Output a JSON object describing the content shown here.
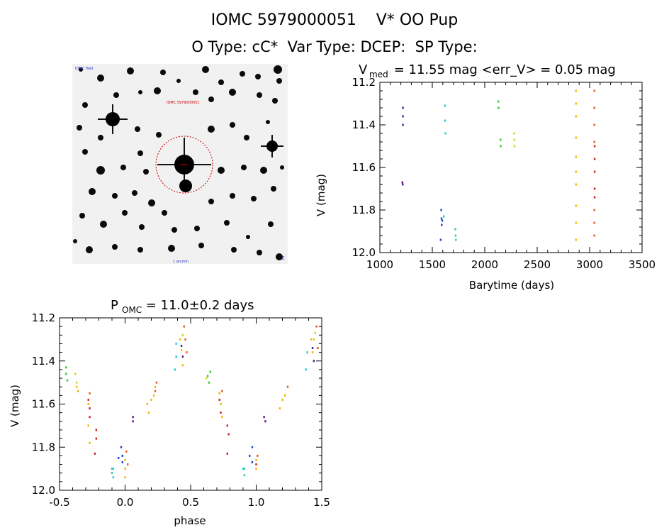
{
  "header": {
    "title_line1": "IOMC 5979000051    V* OO Pup",
    "title_line2": "O Type: cC*  Var Type: DCEP:  SP Type:"
  },
  "image_panel": {
    "description_icon": "star-field-image",
    "label_top_left": "IOMC field",
    "label_center": "IOMC 5979000051",
    "label_bottom_center": "1 arcmin",
    "label_bottom_right": "E",
    "circle_color": "#cc0000"
  },
  "chart_data": [
    {
      "type": "scatter",
      "title_main": "V",
      "title_sub": "med",
      "title_rest": " = 11.55 mag <err_V> = 0.05 mag",
      "xlabel": "Barytime (days)",
      "ylabel": "V (mag)",
      "xlim": [
        1000,
        3500
      ],
      "ylim": [
        11.2,
        12.0
      ],
      "y_inverted": true,
      "xticks": [
        1000,
        1500,
        2000,
        2500,
        3000,
        3500
      ],
      "yticks": [
        "11.2",
        "11.4",
        "11.6",
        "11.8",
        "12.0"
      ],
      "series": [
        {
          "color": "#5a1a8c",
          "points": [
            [
              1220,
              11.32
            ],
            [
              1220,
              11.36
            ],
            [
              1220,
              11.4
            ],
            [
              1215,
              11.67
            ],
            [
              1218,
              11.68
            ]
          ]
        },
        {
          "color": "#2244cc",
          "points": [
            [
              1585,
              11.8
            ],
            [
              1588,
              11.84
            ],
            [
              1590,
              11.87
            ],
            [
              1595,
              11.85
            ],
            [
              1580,
              11.94
            ]
          ]
        },
        {
          "color": "#22cccc",
          "points": [
            [
              1620,
              11.31
            ],
            [
              1622,
              11.38
            ],
            [
              1625,
              11.44
            ],
            [
              1610,
              11.83
            ]
          ]
        },
        {
          "color": "#33ccaa",
          "points": [
            [
              1720,
              11.89
            ],
            [
              1722,
              11.92
            ],
            [
              1725,
              11.94
            ]
          ]
        },
        {
          "color": "#33cc33",
          "points": [
            [
              2130,
              11.29
            ],
            [
              2132,
              11.32
            ],
            [
              2150,
              11.47
            ],
            [
              2152,
              11.5
            ]
          ]
        },
        {
          "color": "#bbdd22",
          "points": [
            [
              2280,
              11.44
            ],
            [
              2282,
              11.47
            ],
            [
              2284,
              11.5
            ]
          ]
        },
        {
          "color": "#f2b705",
          "points": [
            [
              2870,
              11.24
            ],
            [
              2870,
              11.3
            ],
            [
              2870,
              11.36
            ],
            [
              2870,
              11.46
            ],
            [
              2870,
              11.55
            ],
            [
              2870,
              11.62
            ],
            [
              2870,
              11.68
            ],
            [
              2870,
              11.78
            ],
            [
              2870,
              11.86
            ],
            [
              2870,
              11.94
            ]
          ]
        },
        {
          "color": "#e06010",
          "points": [
            [
              3045,
              11.24
            ],
            [
              3045,
              11.32
            ],
            [
              3045,
              11.4
            ],
            [
              3045,
              11.48
            ],
            [
              3045,
              11.8
            ],
            [
              3045,
              11.86
            ],
            [
              3045,
              11.92
            ]
          ]
        },
        {
          "color": "#cc2222",
          "points": [
            [
              3048,
              11.5
            ],
            [
              3048,
              11.56
            ],
            [
              3048,
              11.62
            ],
            [
              3048,
              11.7
            ],
            [
              3048,
              11.74
            ]
          ]
        }
      ]
    },
    {
      "type": "scatter",
      "title_main": "P",
      "title_sub": "OMC",
      "title_rest": " = 11.0±0.2 days",
      "xlabel": "phase",
      "ylabel": "V (mag)",
      "xlim": [
        -0.5,
        1.5
      ],
      "ylim": [
        11.2,
        12.0
      ],
      "y_inverted": true,
      "xticks": [
        "-0.5",
        "0.0",
        "0.5",
        "1.0",
        "1.5"
      ],
      "yticks": [
        "11.2",
        "11.4",
        "11.6",
        "11.8",
        "12.0"
      ],
      "series": [
        {
          "color": "#33cc33",
          "points": [
            [
              -0.45,
              11.43
            ],
            [
              -0.45,
              11.46
            ],
            [
              -0.44,
              11.49
            ],
            [
              0.63,
              11.47
            ],
            [
              0.64,
              11.5
            ],
            [
              0.65,
              11.45
            ]
          ]
        },
        {
          "color": "#bbdd22",
          "points": [
            [
              -0.38,
              11.46
            ],
            [
              -0.37,
              11.5
            ],
            [
              0.62,
              11.48
            ],
            [
              1.45,
              11.27
            ],
            [
              1.44,
              11.3
            ],
            [
              0.44,
              11.28
            ]
          ]
        },
        {
          "color": "#f2b705",
          "points": [
            [
              -0.37,
              11.52
            ],
            [
              -0.36,
              11.54
            ],
            [
              -0.28,
              11.6
            ],
            [
              -0.28,
              11.7
            ],
            [
              -0.27,
              11.78
            ],
            [
              0.0,
              11.86
            ],
            [
              0.0,
              11.9
            ],
            [
              0.0,
              11.94
            ],
            [
              0.17,
              11.6
            ],
            [
              0.18,
              11.64
            ],
            [
              0.2,
              11.58
            ],
            [
              0.22,
              11.56
            ],
            [
              0.23,
              11.52
            ],
            [
              0.42,
              11.3
            ],
            [
              0.43,
              11.35
            ],
            [
              0.44,
              11.42
            ],
            [
              0.72,
              11.55
            ],
            [
              0.73,
              11.6
            ],
            [
              0.74,
              11.66
            ],
            [
              1.0,
              11.86
            ],
            [
              1.0,
              11.9
            ],
            [
              1.18,
              11.62
            ],
            [
              1.2,
              11.58
            ],
            [
              1.22,
              11.56
            ],
            [
              1.42,
              11.3
            ],
            [
              1.43,
              11.36
            ]
          ]
        },
        {
          "color": "#e06010",
          "points": [
            [
              0.01,
              11.82
            ],
            [
              0.02,
              11.88
            ],
            [
              0.24,
              11.5
            ],
            [
              0.23,
              11.54
            ],
            [
              0.45,
              11.24
            ],
            [
              0.46,
              11.3
            ],
            [
              0.47,
              11.36
            ],
            [
              1.01,
              11.84
            ],
            [
              1.24,
              11.52
            ],
            [
              1.46,
              11.24
            ],
            [
              1.47,
              11.34
            ],
            [
              0.74,
              11.54
            ],
            [
              -0.27,
              11.55
            ]
          ]
        },
        {
          "color": "#cc2222",
          "points": [
            [
              -0.28,
              11.58
            ],
            [
              -0.27,
              11.62
            ],
            [
              -0.27,
              11.66
            ],
            [
              -0.22,
              11.72
            ],
            [
              -0.22,
              11.76
            ],
            [
              -0.23,
              11.83
            ],
            [
              0.72,
              11.58
            ],
            [
              0.73,
              11.64
            ],
            [
              0.78,
              11.7
            ],
            [
              0.79,
              11.74
            ],
            [
              0.78,
              11.83
            ],
            [
              1.0,
              11.88
            ]
          ]
        },
        {
          "color": "#5a1a8c",
          "points": [
            [
              0.06,
              11.66
            ],
            [
              0.06,
              11.68
            ],
            [
              0.43,
              11.33
            ],
            [
              0.44,
              11.38
            ],
            [
              1.06,
              11.66
            ],
            [
              1.07,
              11.68
            ],
            [
              1.43,
              11.34
            ],
            [
              1.44,
              11.4
            ]
          ]
        },
        {
          "color": "#2244cc",
          "points": [
            [
              -0.03,
              11.8
            ],
            [
              -0.02,
              11.84
            ],
            [
              -0.02,
              11.87
            ],
            [
              -0.05,
              11.85
            ],
            [
              0.95,
              11.84
            ],
            [
              0.97,
              11.8
            ],
            [
              0.97,
              11.87
            ]
          ]
        },
        {
          "color": "#22cccc",
          "points": [
            [
              0.39,
              11.32
            ],
            [
              0.39,
              11.38
            ],
            [
              0.38,
              11.44
            ],
            [
              -0.09,
              11.9
            ],
            [
              1.39,
              11.36
            ],
            [
              1.38,
              11.44
            ],
            [
              0.91,
              11.9
            ]
          ]
        },
        {
          "color": "#33ccaa",
          "points": [
            [
              -0.1,
              11.9
            ],
            [
              -0.1,
              11.92
            ],
            [
              -0.09,
              11.94
            ],
            [
              0.9,
              11.9
            ],
            [
              0.91,
              11.93
            ]
          ]
        }
      ]
    }
  ]
}
